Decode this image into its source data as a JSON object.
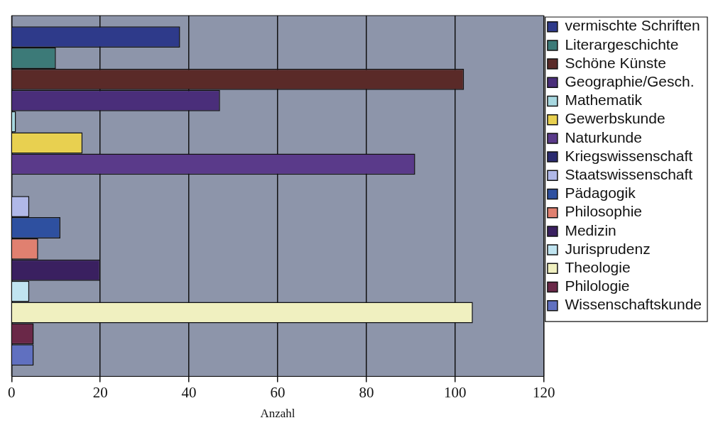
{
  "chart_data": {
    "type": "bar",
    "orientation": "horizontal",
    "xlabel": "Anzahl",
    "categories": [
      null
    ],
    "series": [
      {
        "name": "vermischte Schriften",
        "color": "#2e3a8a",
        "values": [
          38
        ]
      },
      {
        "name": "Literargeschichte",
        "color": "#3c7a78",
        "values": [
          10
        ]
      },
      {
        "name": "Schöne Künste",
        "color": "#5a2a28",
        "values": [
          102
        ]
      },
      {
        "name": "Geographie/Gesch.",
        "color": "#4a2e7a",
        "values": [
          47
        ]
      },
      {
        "name": "Mathematik",
        "color": "#a8d8e0",
        "values": [
          1
        ]
      },
      {
        "name": "Gewerbskunde",
        "color": "#e8d050",
        "values": [
          16
        ]
      },
      {
        "name": "Naturkunde",
        "color": "#5a3a8a",
        "values": [
          91
        ]
      },
      {
        "name": "Kriegswissenschaft",
        "color": "#2a2a70",
        "values": [
          0
        ]
      },
      {
        "name": "Staatswissenschaft",
        "color": "#b0b8e8",
        "values": [
          4
        ]
      },
      {
        "name": "Pädagogik",
        "color": "#2e50a0",
        "values": [
          11
        ]
      },
      {
        "name": "Philosophie",
        "color": "#e08070",
        "values": [
          6
        ]
      },
      {
        "name": "Medizin",
        "color": "#3a2060",
        "values": [
          20
        ]
      },
      {
        "name": "Jurisprudenz",
        "color": "#c0e4f0",
        "values": [
          4
        ]
      },
      {
        "name": "Theologie",
        "color": "#f0f0c0",
        "values": [
          104
        ]
      },
      {
        "name": "Philologie",
        "color": "#6a2848",
        "values": [
          5
        ]
      },
      {
        "name": "Wissenschaftskunde",
        "color": "#6070c0",
        "values": [
          5
        ]
      }
    ],
    "xlim": [
      0,
      120
    ],
    "xticks": [
      0,
      20,
      40,
      60,
      80,
      100,
      120
    ],
    "grid": "x",
    "legend": "right",
    "tick_labels": "x"
  }
}
